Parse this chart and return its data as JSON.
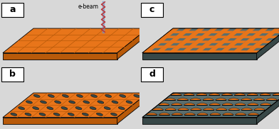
{
  "orange": "#E8751A",
  "dark_orange": "#B85A0A",
  "gray": "#5A6E6E",
  "dark_gray": "#384848",
  "light_gray": "#6A8080",
  "panel_bg": "#d8d8d8",
  "ebeam_blue": "#7090c0",
  "ebeam_red": "#c03030",
  "ebeam_label": "e-beam",
  "labels": [
    "a",
    "b",
    "c",
    "d"
  ]
}
